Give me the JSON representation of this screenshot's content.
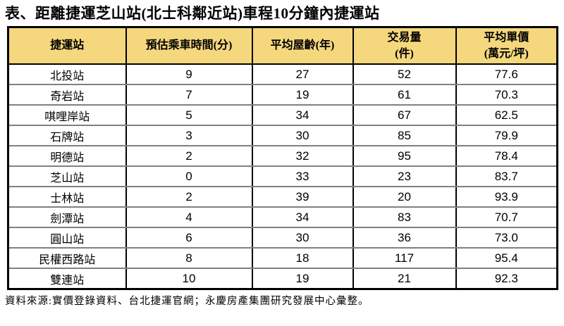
{
  "page": {
    "title": "表、距離捷運芝山站(北士科鄰近站)車程10分鐘內捷運站",
    "source_note": "資料來源:實價登錄資料、台北捷運官網；永慶房產集團研究發展中心彙整。"
  },
  "colors": {
    "header_bg": "#F5D77E",
    "outer_border": "#000000",
    "row_separator": "#808080",
    "column_separator": "#000000",
    "text": "#000000",
    "page_bg": "#FFFFFF"
  },
  "table": {
    "columns": [
      {
        "id": "station",
        "lines": [
          "捷運站"
        ]
      },
      {
        "id": "ride_time_min",
        "lines": [
          "預估乘車時間(分)"
        ]
      },
      {
        "id": "avg_house_age_yr",
        "lines": [
          "平均屋齡(年)"
        ]
      },
      {
        "id": "transactions",
        "lines": [
          "交易量",
          "(件)"
        ]
      },
      {
        "id": "avg_unit_price",
        "lines": [
          "平均單價",
          "(萬元/坪)"
        ]
      }
    ],
    "rows": [
      {
        "station": "北投站",
        "ride_time_min": "9",
        "avg_house_age_yr": "27",
        "transactions": "52",
        "avg_unit_price": "77.6"
      },
      {
        "station": "奇岩站",
        "ride_time_min": "7",
        "avg_house_age_yr": "19",
        "transactions": "61",
        "avg_unit_price": "70.3"
      },
      {
        "station": "唭哩岸站",
        "ride_time_min": "5",
        "avg_house_age_yr": "34",
        "transactions": "67",
        "avg_unit_price": "62.5"
      },
      {
        "station": "石牌站",
        "ride_time_min": "3",
        "avg_house_age_yr": "30",
        "transactions": "85",
        "avg_unit_price": "79.9"
      },
      {
        "station": "明德站",
        "ride_time_min": "2",
        "avg_house_age_yr": "32",
        "transactions": "95",
        "avg_unit_price": "78.4"
      },
      {
        "station": "芝山站",
        "ride_time_min": "0",
        "avg_house_age_yr": "33",
        "transactions": "23",
        "avg_unit_price": "83.7"
      },
      {
        "station": "士林站",
        "ride_time_min": "2",
        "avg_house_age_yr": "39",
        "transactions": "20",
        "avg_unit_price": "93.9"
      },
      {
        "station": "劍潭站",
        "ride_time_min": "4",
        "avg_house_age_yr": "34",
        "transactions": "83",
        "avg_unit_price": "70.7"
      },
      {
        "station": "圓山站",
        "ride_time_min": "6",
        "avg_house_age_yr": "30",
        "transactions": "36",
        "avg_unit_price": "73.0"
      },
      {
        "station": "民權西路站",
        "ride_time_min": "8",
        "avg_house_age_yr": "18",
        "transactions": "117",
        "avg_unit_price": "95.4"
      },
      {
        "station": "雙連站",
        "ride_time_min": "10",
        "avg_house_age_yr": "19",
        "transactions": "21",
        "avg_unit_price": "92.3"
      }
    ]
  }
}
